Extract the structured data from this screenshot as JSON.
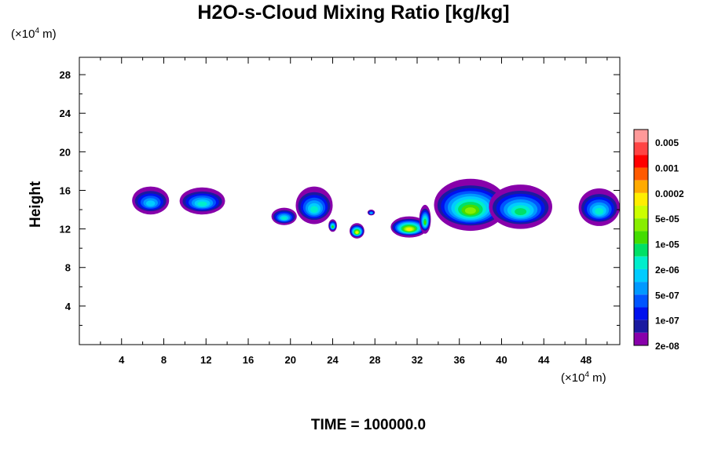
{
  "header": {
    "title": "H2O-s-Cloud Mixing Ratio [kg/kg]",
    "y_unit": "(×10",
    "y_unit_exp": "4",
    "y_unit_tail": " m)",
    "x_unit": "(×10",
    "x_unit_exp": "4",
    "x_unit_tail": " m)",
    "ylabel": "Height",
    "time_label": "TIME = 100000.0"
  },
  "chart_data": {
    "type": "heatmap",
    "title": "H2O-s-Cloud Mixing Ratio [kg/kg]",
    "xlabel": "",
    "ylabel": "Height",
    "x_unit": "×10^4 m",
    "y_unit": "×10^4 m",
    "xlim": [
      0,
      51.2
    ],
    "ylim": [
      0,
      29.8
    ],
    "x_ticks": [
      4,
      8,
      12,
      16,
      20,
      24,
      28,
      32,
      36,
      40,
      44,
      48
    ],
    "y_ticks": [
      4,
      8,
      12,
      16,
      20,
      24,
      28
    ],
    "colorbar": {
      "labels": [
        "0.005",
        "0.001",
        "0.0002",
        "5e-05",
        "1e-05",
        "2e-06",
        "5e-07",
        "1e-07",
        "2e-08"
      ],
      "colors": [
        "#ff9999",
        "#ff4444",
        "#ff0000",
        "#ff5a00",
        "#ffaa00",
        "#ffee00",
        "#ccff00",
        "#88ee00",
        "#44dd00",
        "#00e066",
        "#00eecc",
        "#00ccff",
        "#0099ff",
        "#0055ff",
        "#0011ee",
        "#1a1aa0",
        "#8800aa"
      ]
    },
    "cloud_cells": [
      {
        "x0": 5.0,
        "x1": 8.5,
        "ytop": 16.4,
        "ybot": 13.5,
        "peak": 5
      },
      {
        "x0": 9.5,
        "x1": 13.8,
        "ytop": 16.3,
        "ybot": 13.5,
        "peak": 6
      },
      {
        "x0": 18.2,
        "x1": 20.6,
        "ytop": 14.2,
        "ybot": 12.4,
        "peak": 6
      },
      {
        "x0": 20.5,
        "x1": 24.0,
        "ytop": 16.4,
        "ybot": 12.5,
        "peak": 6
      },
      {
        "x0": 23.6,
        "x1": 24.4,
        "ytop": 13.0,
        "ybot": 11.7,
        "peak": 8
      },
      {
        "x0": 25.6,
        "x1": 27.0,
        "ytop": 12.6,
        "ybot": 11.0,
        "peak": 11
      },
      {
        "x0": 27.3,
        "x1": 28.0,
        "ytop": 14.0,
        "ybot": 13.4,
        "peak": 5
      },
      {
        "x0": 29.5,
        "x1": 33.0,
        "ytop": 13.3,
        "ybot": 11.1,
        "peak": 11
      },
      {
        "x0": 32.2,
        "x1": 33.3,
        "ytop": 14.5,
        "ybot": 11.5,
        "peak": 8
      },
      {
        "x0": 33.6,
        "x1": 40.5,
        "ytop": 17.2,
        "ybot": 11.8,
        "peak": 9
      },
      {
        "x0": 38.8,
        "x1": 44.8,
        "ytop": 16.6,
        "ybot": 12.0,
        "peak": 7
      },
      {
        "x0": 47.3,
        "x1": 51.2,
        "ytop": 16.2,
        "ybot": 12.3,
        "peak": 6
      }
    ]
  }
}
